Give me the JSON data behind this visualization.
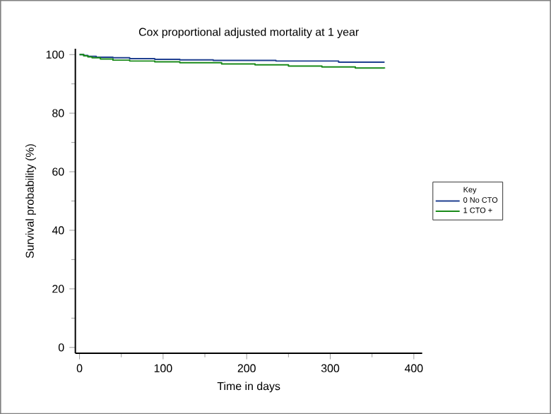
{
  "chart_data": {
    "type": "step",
    "title": "Cox proportional adjusted mortality at 1 year",
    "xlabel": "Time in days",
    "ylabel": "Survival probability (%)",
    "legend_title": "Key",
    "legend": "right",
    "grid": false,
    "xlim": [
      -5,
      410
    ],
    "ylim": [
      -2,
      102
    ],
    "xticks": [
      0,
      100,
      200,
      300,
      400
    ],
    "yticks": [
      0,
      20,
      40,
      60,
      80,
      100
    ],
    "series": [
      {
        "name": "0 No CTO",
        "color": "#1f3f8f",
        "x": [
          0,
          5,
          10,
          20,
          40,
          60,
          90,
          120,
          160,
          235,
          310,
          365
        ],
        "values": [
          100,
          99.7,
          99.4,
          99.1,
          98.9,
          98.6,
          98.4,
          98.2,
          98.0,
          97.8,
          97.4,
          97.4
        ]
      },
      {
        "name": "1 CTO +",
        "color": "#1a8a1a",
        "x": [
          0,
          5,
          10,
          15,
          25,
          40,
          60,
          90,
          120,
          170,
          210,
          250,
          290,
          330,
          365
        ],
        "values": [
          100,
          99.6,
          99.2,
          98.9,
          98.5,
          98.1,
          97.8,
          97.5,
          97.2,
          96.8,
          96.5,
          96.1,
          95.8,
          95.4,
          95.3
        ]
      }
    ]
  }
}
